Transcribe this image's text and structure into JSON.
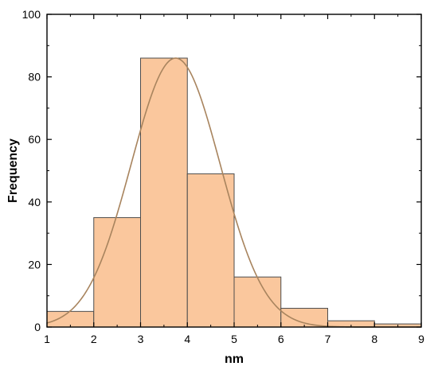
{
  "chart_data": {
    "type": "bar",
    "subtype": "histogram",
    "xlabel": "nm",
    "ylabel": "Frequency",
    "xlim": [
      1,
      9
    ],
    "ylim": [
      0,
      100
    ],
    "x_ticks": [
      1,
      2,
      3,
      4,
      5,
      6,
      7,
      8,
      9
    ],
    "y_ticks": [
      0,
      20,
      40,
      60,
      80,
      100
    ],
    "bins": [
      {
        "from": 1,
        "to": 2,
        "value": 5
      },
      {
        "from": 2,
        "to": 3,
        "value": 35
      },
      {
        "from": 3,
        "to": 4,
        "value": 86
      },
      {
        "from": 4,
        "to": 5,
        "value": 49
      },
      {
        "from": 5,
        "to": 6,
        "value": 16
      },
      {
        "from": 6,
        "to": 7,
        "value": 6
      },
      {
        "from": 7,
        "to": 8,
        "value": 2
      },
      {
        "from": 8,
        "to": 9,
        "value": 1
      }
    ],
    "fit_curve": {
      "type": "gaussian",
      "peak": 86,
      "mean": 3.75,
      "sd": 0.95
    },
    "bar_color": "#FAC79D",
    "bar_edge_color": "#4D4D4D",
    "curve_color": "#A8845E",
    "grid": false,
    "legend": "none"
  }
}
